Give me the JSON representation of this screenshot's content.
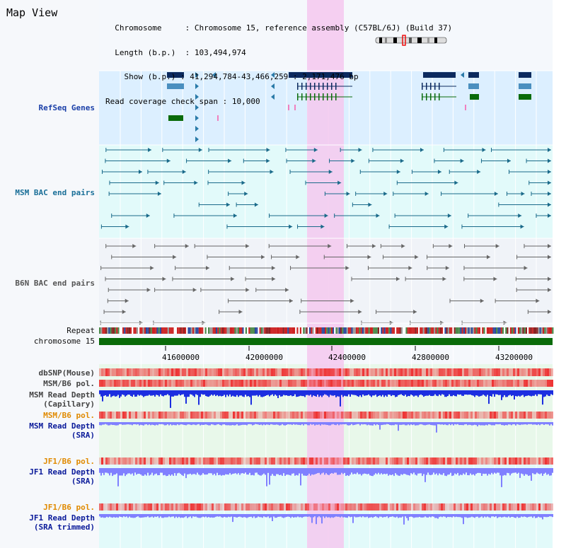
{
  "view": {
    "title": "Map View"
  },
  "info": {
    "chromosome_key": "Chromosome",
    "chromosome_value": "Chromosome 15, reference assembly (C57BL/6J) (Build 37)",
    "length_key": "Length (b.p.)",
    "length_value": "103,494,974",
    "show_key": "Show (b.p.)",
    "show_value": "41,294,784-43,466,259 : 2,171,476 bp",
    "coverage_key": "Read coverage check span",
    "coverage_value": "10,000"
  },
  "tracks": {
    "refseq": "RefSeq Genes",
    "msm_bac": "MSM BAC end pairs",
    "b6n_bac": "B6N BAC end pairs",
    "repeat": "Repeat",
    "chromosome": "chromosome 15",
    "dbsnp": "dbSNP(Mouse)",
    "msm_b6_pol_1": "MSM/B6 pol.",
    "msm_depth_cap_1": "MSM Read Depth",
    "msm_depth_cap_2": "(Capillary)",
    "msm_b6_pol_2": "MSM/B6 pol.",
    "msm_depth_sra_1": "MSM Read Depth",
    "msm_depth_sra_2": "(SRA)",
    "jf1_b6_pol_1": "JF1/B6 pol.",
    "jf1_depth_sra_1": "JF1 Read Depth",
    "jf1_depth_sra_2": "(SRA)",
    "jf1_b6_pol_2": "JF1/B6 pol.",
    "jf1_depth_trim_1": "JF1 Read Depth",
    "jf1_depth_trim_2": "(SRA trimmed)"
  },
  "axis": {
    "ticks": [
      "41600000",
      "42000000",
      "42400000",
      "42800000",
      "43200000"
    ]
  },
  "colors": {
    "highlight": "#f4c8ef",
    "refseq_bg": "#dcefff",
    "msm_bg": "#e2fafa",
    "b6n_bg": "#f0f3f8",
    "gene_navy": "#0b2a5e",
    "gene_light": "#4a8fbf",
    "gene_green": "#0a6b0a",
    "bac_teal": "#1a6a8a",
    "bac_grey": "#666666",
    "chromosome": "#0a6b0a",
    "snp_red": "#ee3333",
    "depth_blue": "#1c2ee0",
    "depth_light": "#8080ff"
  }
}
